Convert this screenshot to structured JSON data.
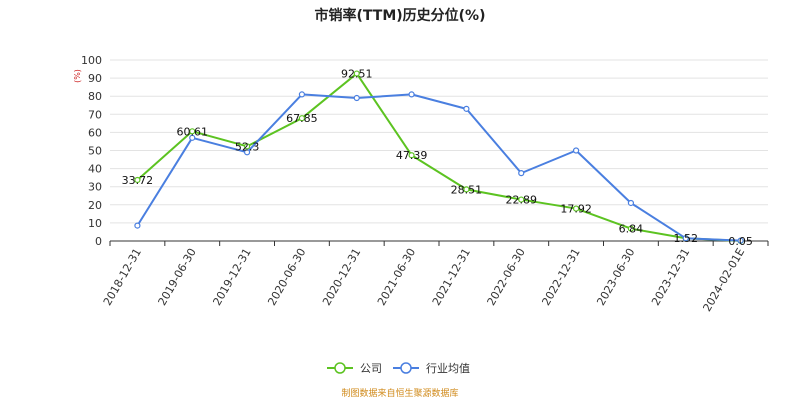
{
  "chart_data": {
    "type": "line",
    "title": "市销率(TTM)历史分位(%)",
    "ylabel": "(%)",
    "ylim": [
      0,
      100
    ],
    "yticks": [
      "0",
      "10",
      "20",
      "30",
      "40",
      "50",
      "60",
      "70",
      "80",
      "90",
      "100"
    ],
    "categories": [
      "2018-12-31",
      "2019-06-30",
      "2019-12-31",
      "2020-06-30",
      "2020-12-31",
      "2021-06-30",
      "2021-12-31",
      "2022-06-30",
      "2022-12-31",
      "2023-06-30",
      "2023-12-31",
      "2024-02-01E"
    ],
    "series": [
      {
        "name": "公司",
        "color": "#5cc321",
        "values": [
          33.72,
          60.61,
          52.3,
          67.85,
          92.51,
          47.39,
          28.51,
          22.89,
          17.92,
          6.84,
          1.52,
          0.05
        ],
        "labels": [
          "33.72",
          "60.61",
          "52.3",
          "67.85",
          "92.51",
          "47.39",
          "28.51",
          "22.89",
          "17.92",
          "6.84",
          "1.52",
          "0.05"
        ]
      },
      {
        "name": "行业均值",
        "color": "#4a7fe0",
        "values": [
          8.5,
          57,
          49,
          81,
          79,
          81,
          73,
          37.5,
          50,
          21,
          1.5,
          0.2
        ]
      }
    ],
    "grid": true,
    "legend_position": "bottom"
  },
  "footer": {
    "source": "制图数据来自恒生聚源数据库"
  }
}
